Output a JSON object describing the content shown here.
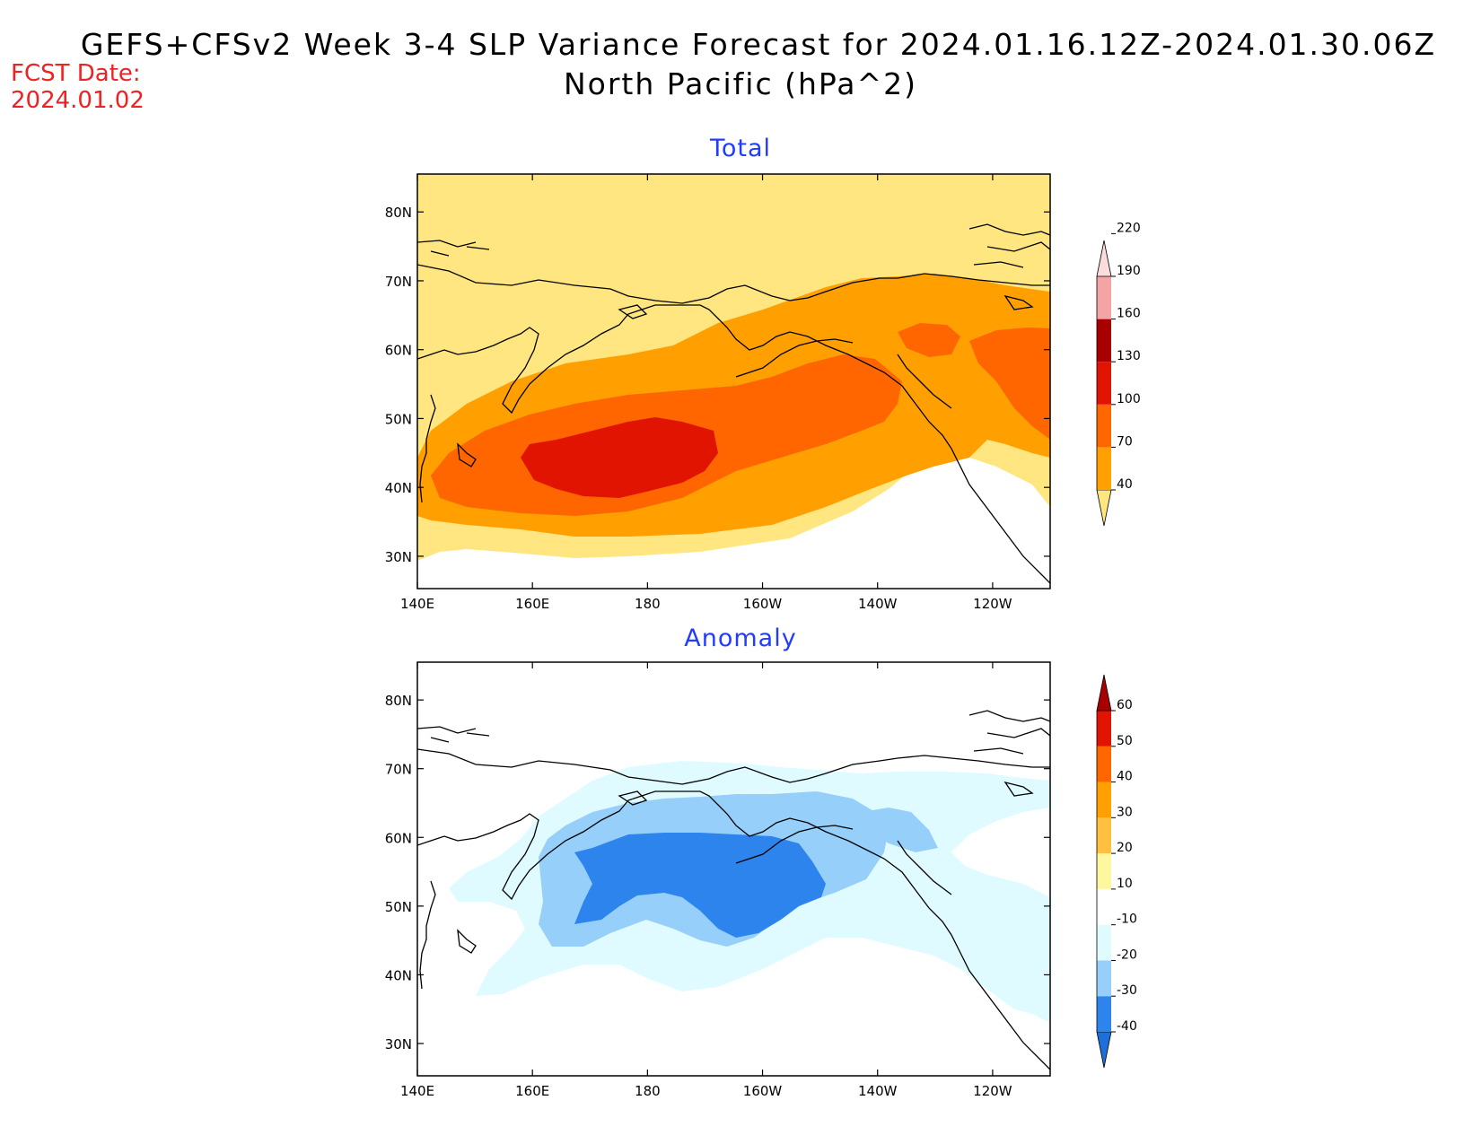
{
  "title": {
    "line1": "GEFS+CFSv2 Week 3-4 SLP Variance Forecast for 2024.01.16.12Z-2024.01.30.06Z",
    "line2": "North Pacific (hPa^2)"
  },
  "forecast_date": {
    "label": "FCST Date:",
    "value": "2024.01.02"
  },
  "panels": [
    {
      "title": "Total",
      "lat_labels": [
        "80N",
        "70N",
        "60N",
        "50N",
        "40N",
        "30N"
      ],
      "lon_labels": [
        "140E",
        "160E",
        "180",
        "160W",
        "140W",
        "120W"
      ],
      "colorbar": {
        "levels": [
          "40",
          "70",
          "100",
          "130",
          "160",
          "190",
          "220"
        ],
        "colors": [
          "#ffe680",
          "#ffa000",
          "#ff6600",
          "#e01400",
          "#a80000",
          "#f4a4a4",
          "#fadcdc"
        ]
      }
    },
    {
      "title": "Anomaly",
      "lat_labels": [
        "80N",
        "70N",
        "60N",
        "50N",
        "40N",
        "30N"
      ],
      "lon_labels": [
        "140E",
        "160E",
        "180",
        "160W",
        "140W",
        "120W"
      ],
      "colorbar": {
        "levels": [
          "-40",
          "-30",
          "-20",
          "-10",
          "10",
          "20",
          "30",
          "40",
          "50",
          "60"
        ],
        "colors": [
          "#1e6fd9",
          "#2c84ec",
          "#96d0fa",
          "#e0fbff",
          "#ffffff",
          "#fff7a0",
          "#ffc040",
          "#ffa000",
          "#ff6600",
          "#e01400",
          "#a80000"
        ]
      }
    }
  ],
  "map_colors": {
    "total": {
      "c40": "#ffe680",
      "c70": "#ffa000",
      "c100": "#ff6600",
      "c130": "#e01400"
    },
    "anomaly": {
      "cm10": "#e0fbff",
      "cm20": "#96d0fa",
      "cm30": "#2c84ec"
    },
    "coast": "#000000"
  }
}
